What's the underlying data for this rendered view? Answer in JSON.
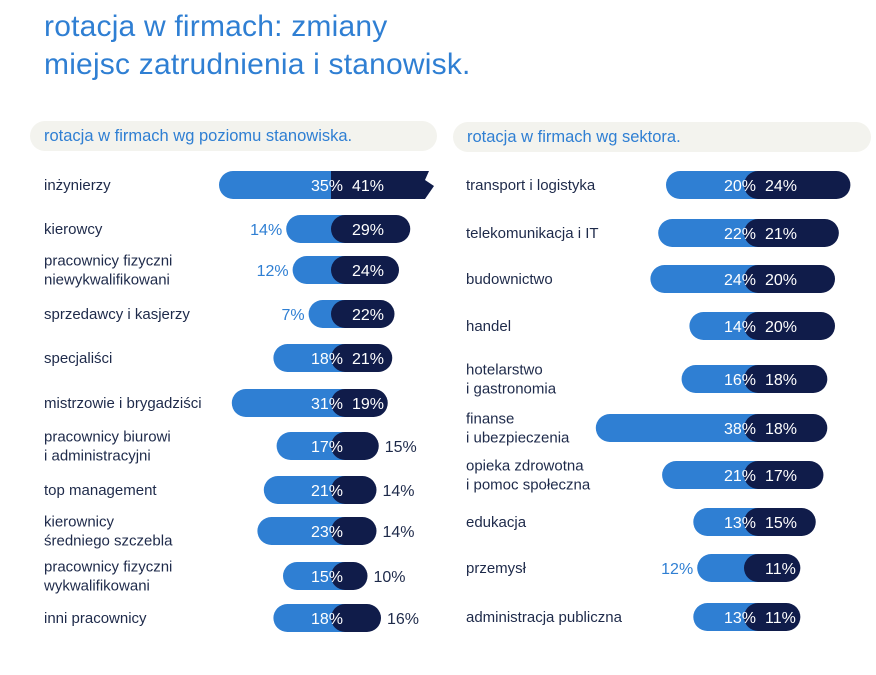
{
  "title": {
    "line1": "rotacja w firmach: zmiany",
    "line2": "miejsc zatrudnienia i stanowisk."
  },
  "colors": {
    "primary": "#2f7fd3",
    "dark": "#101c4a",
    "text": "#1e2a4a",
    "header_bg": "#f3f3ee"
  },
  "chart_data": [
    {
      "type": "bar",
      "title": "rotacja w firmach wg poziomu stanowiska.",
      "categories": [
        [
          "inżynierzy"
        ],
        [
          "kierowcy"
        ],
        [
          "pracownicy fizyczni",
          "niewykwalifikowani"
        ],
        [
          "sprzedawcy i kasjerzy"
        ],
        [
          "specjaliści"
        ],
        [
          "mistrzowie i brygadziści"
        ],
        [
          "pracownicy biurowi",
          "i administracyjni"
        ],
        [
          "top management"
        ],
        [
          "kierownicy",
          "średniego szczebla"
        ],
        [
          "pracownicy fizyczni",
          "wykwalifikowani"
        ],
        [
          "inni pracownicy"
        ]
      ],
      "series": [
        {
          "values": [
            35,
            14,
            12,
            7,
            18,
            31,
            17,
            21,
            23,
            15,
            18
          ],
          "labels": [
            "35%",
            "14%",
            "12%",
            "7%",
            "18%",
            "31%",
            "17%",
            "21%",
            "23%",
            "15%",
            "18%"
          ]
        },
        {
          "values": [
            41,
            29,
            24,
            22,
            21,
            19,
            15,
            14,
            14,
            10,
            16
          ],
          "labels": [
            "41%",
            "29%",
            "24%",
            "22%",
            "21%",
            "19%",
            "15%",
            "14%",
            "14%",
            "10%",
            "16%"
          ]
        }
      ],
      "truncated": [
        true,
        false,
        false,
        false,
        false,
        false,
        false,
        false,
        false,
        false,
        false
      ]
    },
    {
      "type": "bar",
      "title": "rotacja w firmach wg sektora.",
      "categories": [
        [
          "transport i logistyka"
        ],
        [
          "telekomunikacja i IT"
        ],
        [
          "budownictwo"
        ],
        [
          "handel"
        ],
        [
          "hotelarstwo",
          "i gastronomia"
        ],
        [
          "finanse",
          "i ubezpieczenia"
        ],
        [
          "opieka zdrowotna",
          "i pomoc społeczna"
        ],
        [
          "edukacja"
        ],
        [
          "przemysł"
        ],
        [
          "administracja publiczna"
        ]
      ],
      "series": [
        {
          "values": [
            20,
            22,
            24,
            14,
            16,
            38,
            21,
            13,
            12,
            13
          ],
          "labels": [
            "20%",
            "22%",
            "24%",
            "14%",
            "16%",
            "38%",
            "21%",
            "13%",
            "12%",
            "13%"
          ]
        },
        {
          "values": [
            24,
            21,
            20,
            20,
            18,
            18,
            17,
            15,
            11,
            11
          ],
          "labels": [
            "24%",
            "21%",
            "20%",
            "20%",
            "18%",
            "18%",
            "17%",
            "15%",
            "11%",
            "11%"
          ]
        }
      ]
    }
  ]
}
